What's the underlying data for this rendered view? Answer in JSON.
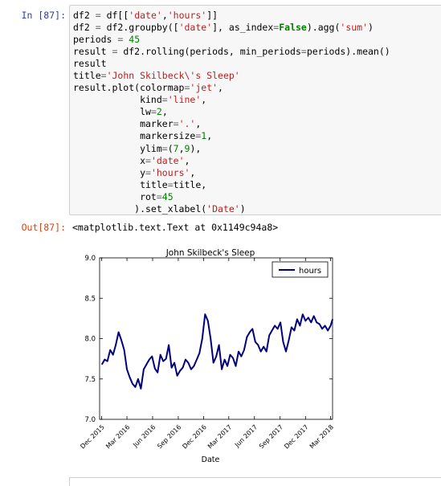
{
  "cell": {
    "in_prompt": "In [87]:",
    "out_prompt": "Out[87]:",
    "output_text": "<matplotlib.text.Text at 0x1149c94a8>",
    "code_lines": [
      "df2 = df[['date','hours']]",
      "df2 = df2.groupby(['date'], as_index=False).agg('sum')",
      "periods = 45",
      "result = df2.rolling(periods, min_periods=periods).mean()",
      "result",
      "title='John Skilbeck\\'s Sleep'",
      "result.plot(colormap='jet',",
      "            kind='line',",
      "            lw=2,",
      "            marker='.',",
      "            markersize=1,",
      "            ylim=(7,9),",
      "            x='date',",
      "            y='hours',",
      "            title=title,",
      "            rot=45",
      "           ).set_xlabel('Date')"
    ]
  },
  "chart_data": {
    "type": "line",
    "title": "John Skilbeck's Sleep",
    "xlabel": "Date",
    "ylabel": "",
    "ylim": [
      7.0,
      9.0
    ],
    "yticks": [
      "7.0",
      "7.5",
      "8.0",
      "8.5",
      "9.0"
    ],
    "xticks": [
      "Dec 2015",
      "Mar 2016",
      "Jun 2016",
      "Sep 2016",
      "Dec 2016",
      "Mar 2017",
      "Jun 2017",
      "Sep 2017",
      "Dec 2017",
      "Mar 2018"
    ],
    "xlim": [
      "2015-11-24",
      "2018-03-08"
    ],
    "legend": "upper right",
    "grid": false,
    "series": [
      {
        "name": "hours",
        "color": "#00007f",
        "x": [
          "2015-12-02",
          "2015-12-12",
          "2015-12-22",
          "2016-01-01",
          "2016-01-11",
          "2016-01-21",
          "2016-01-31",
          "2016-02-10",
          "2016-02-20",
          "2016-03-01",
          "2016-03-11",
          "2016-03-21",
          "2016-03-31",
          "2016-04-10",
          "2016-04-20",
          "2016-04-30",
          "2016-05-10",
          "2016-05-20",
          "2016-05-30",
          "2016-06-09",
          "2016-06-19",
          "2016-06-29",
          "2016-07-09",
          "2016-07-19",
          "2016-07-29",
          "2016-08-08",
          "2016-08-18",
          "2016-08-28",
          "2016-09-07",
          "2016-09-17",
          "2016-09-27",
          "2016-10-07",
          "2016-10-17",
          "2016-10-27",
          "2016-11-06",
          "2016-11-16",
          "2016-11-26",
          "2016-12-06",
          "2016-12-16",
          "2016-12-26",
          "2017-01-05",
          "2017-01-15",
          "2017-01-25",
          "2017-02-04",
          "2017-02-14",
          "2017-02-24",
          "2017-03-06",
          "2017-03-16",
          "2017-03-26",
          "2017-04-05",
          "2017-04-15",
          "2017-04-25",
          "2017-05-05",
          "2017-05-15",
          "2017-05-25",
          "2017-06-04",
          "2017-06-14",
          "2017-06-24",
          "2017-07-04",
          "2017-07-14",
          "2017-07-24",
          "2017-08-03",
          "2017-08-13",
          "2017-08-23",
          "2017-09-02",
          "2017-09-12",
          "2017-09-22",
          "2017-10-02",
          "2017-10-12",
          "2017-10-22",
          "2017-11-01",
          "2017-11-11",
          "2017-11-21",
          "2017-12-01",
          "2017-12-11",
          "2017-12-21",
          "2017-12-31",
          "2018-01-10",
          "2018-01-20",
          "2018-01-30",
          "2018-02-09",
          "2018-02-19",
          "2018-03-01",
          "2018-03-08"
        ],
        "values": [
          7.68,
          7.74,
          7.72,
          7.86,
          7.8,
          7.92,
          8.08,
          7.98,
          7.86,
          7.62,
          7.52,
          7.44,
          7.4,
          7.5,
          7.38,
          7.62,
          7.68,
          7.74,
          7.78,
          7.63,
          7.58,
          7.8,
          7.72,
          7.75,
          7.92,
          7.64,
          7.7,
          7.54,
          7.6,
          7.64,
          7.74,
          7.7,
          7.62,
          7.66,
          7.74,
          7.82,
          8.0,
          8.3,
          8.22,
          8.0,
          7.7,
          7.78,
          7.92,
          7.62,
          7.74,
          7.66,
          7.8,
          7.76,
          7.66,
          7.84,
          7.78,
          7.86,
          8.02,
          8.08,
          8.12,
          7.96,
          7.92,
          7.84,
          7.9,
          7.84,
          8.04,
          8.1,
          8.16,
          8.12,
          8.2,
          7.96,
          7.84,
          7.98,
          8.14,
          8.1,
          8.24,
          8.16,
          8.3,
          8.22,
          8.26,
          8.2,
          8.28,
          8.2,
          8.18,
          8.12,
          8.16,
          8.1,
          8.16,
          8.24
        ]
      }
    ]
  }
}
